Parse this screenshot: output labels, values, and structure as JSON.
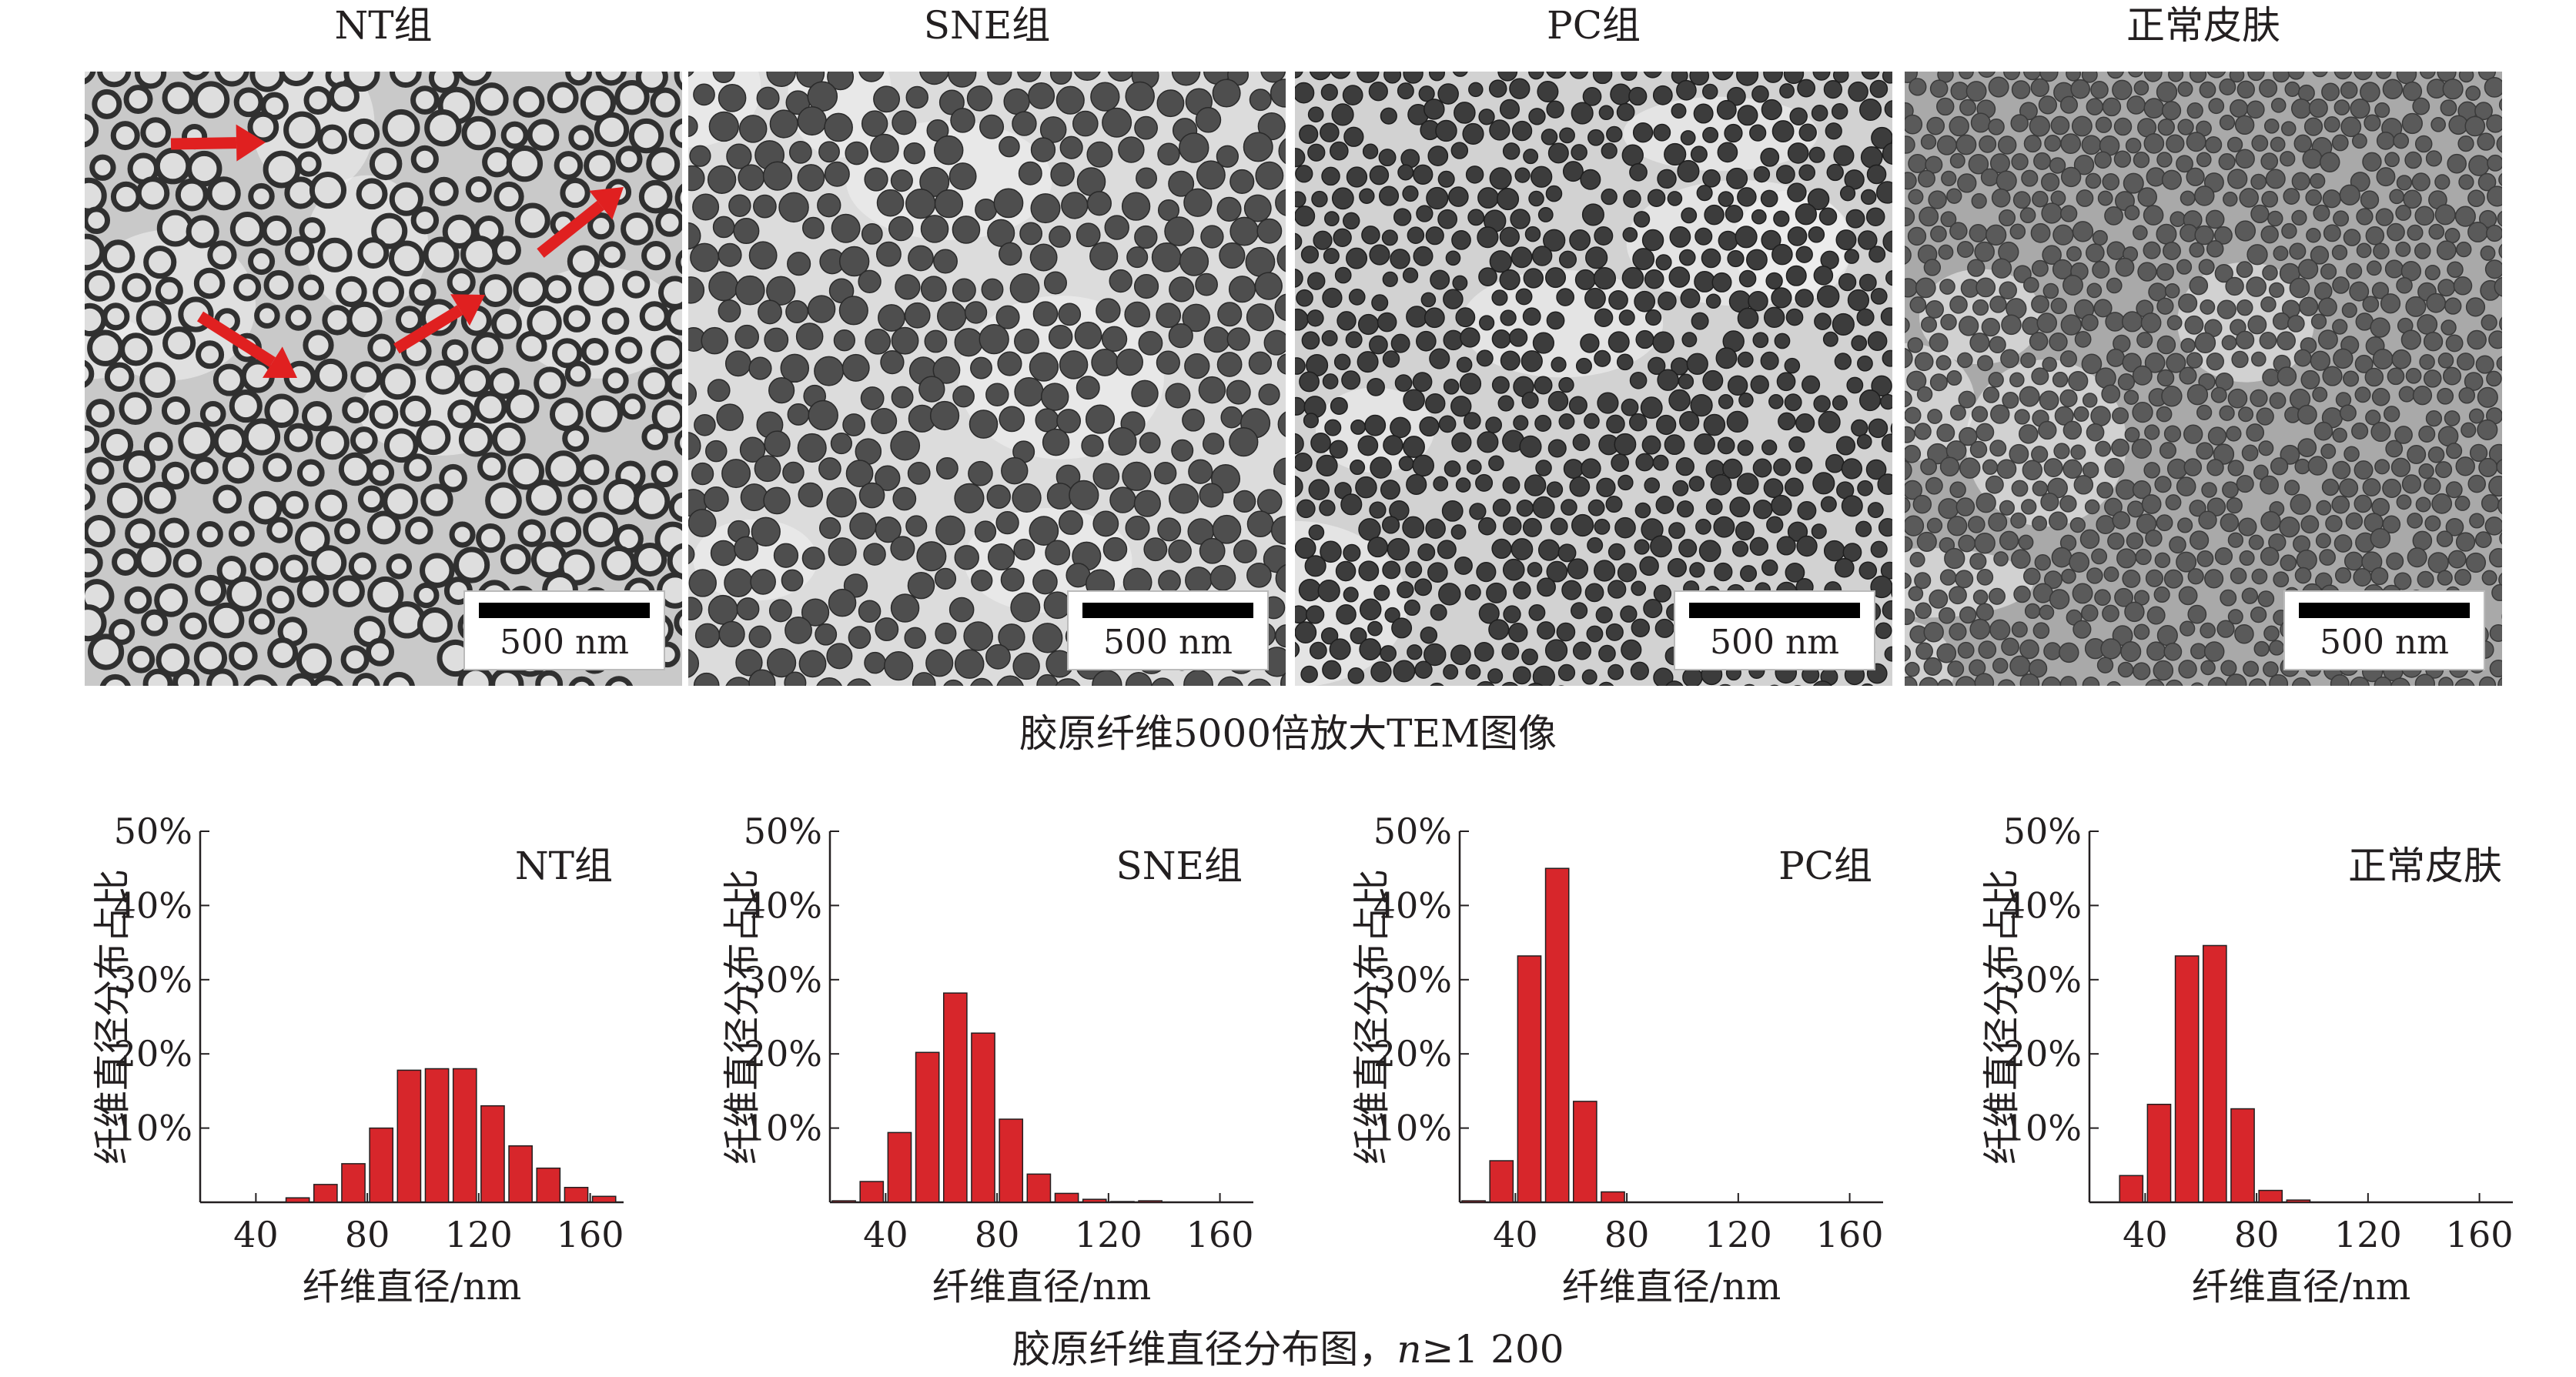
{
  "panels": [
    {
      "title": "NT组",
      "scale_label": "500 nm"
    },
    {
      "title": "SNE组",
      "scale_label": "500 nm"
    },
    {
      "title": "PC组",
      "scale_label": "500 nm"
    },
    {
      "title": "正常皮肤",
      "scale_label": "500 nm"
    }
  ],
  "tem_caption": "胶原纤维5000倍放大TEM图像",
  "chart_caption": {
    "prefix": "胶原纤维直径分布图，",
    "n_symbol": "n",
    "suffix": "≥1 200"
  },
  "colors": {
    "bar_fill": "#d7262b",
    "bar_stroke": "#231f20",
    "arrow": "#e02020"
  },
  "chart_data": [
    {
      "type": "bar",
      "title": "NT组",
      "xlabel": "纤维直径/nm",
      "ylabel": "纤维直径分布占比",
      "xlim": [
        20,
        172
      ],
      "ylim": [
        0,
        50
      ],
      "xticks": [
        40,
        80,
        120,
        160
      ],
      "yticks": [
        10,
        20,
        30,
        40,
        50
      ],
      "ytick_labels": [
        "10%",
        "20%",
        "30%",
        "40%",
        "50%"
      ],
      "bin_width": 10,
      "x": [
        55,
        65,
        75,
        85,
        95,
        105,
        115,
        125,
        135,
        145,
        155,
        165
      ],
      "values": [
        0.6,
        2.4,
        5.2,
        10.0,
        17.8,
        18.0,
        18.0,
        13.0,
        7.6,
        4.6,
        2.0,
        0.8
      ]
    },
    {
      "type": "bar",
      "title": "SNE组",
      "xlabel": "纤维直径/nm",
      "ylabel": "纤维直径分布占比",
      "xlim": [
        20,
        172
      ],
      "ylim": [
        0,
        50
      ],
      "xticks": [
        40,
        80,
        120,
        160
      ],
      "yticks": [
        10,
        20,
        30,
        40,
        50
      ],
      "ytick_labels": [
        "10%",
        "20%",
        "30%",
        "40%",
        "50%"
      ],
      "bin_width": 10,
      "x": [
        25,
        35,
        45,
        55,
        65,
        75,
        85,
        95,
        105,
        115,
        125,
        135
      ],
      "values": [
        0.2,
        2.8,
        9.4,
        20.2,
        28.2,
        22.8,
        11.2,
        3.8,
        1.2,
        0.4,
        0.1,
        0.2
      ]
    },
    {
      "type": "bar",
      "title": "PC组",
      "xlabel": "纤维直径/nm",
      "ylabel": "纤维直径分布占比",
      "xlim": [
        20,
        172
      ],
      "ylim": [
        0,
        50
      ],
      "xticks": [
        40,
        80,
        120,
        160
      ],
      "yticks": [
        10,
        20,
        30,
        40,
        50
      ],
      "ytick_labels": [
        "10%",
        "20%",
        "30%",
        "40%",
        "50%"
      ],
      "bin_width": 10,
      "x": [
        25,
        35,
        45,
        55,
        65,
        75
      ],
      "values": [
        0.2,
        5.6,
        33.2,
        45.0,
        13.6,
        1.4
      ]
    },
    {
      "type": "bar",
      "title": "正常皮肤",
      "xlabel": "纤维直径/nm",
      "ylabel": "纤维直径分布占比",
      "xlim": [
        20,
        172
      ],
      "ylim": [
        0,
        50
      ],
      "xticks": [
        40,
        80,
        120,
        160
      ],
      "yticks": [
        10,
        20,
        30,
        40,
        50
      ],
      "ytick_labels": [
        "10%",
        "20%",
        "30%",
        "40%",
        "50%"
      ],
      "bin_width": 10,
      "x": [
        35,
        45,
        55,
        65,
        75,
        85,
        95
      ],
      "values": [
        3.6,
        13.2,
        33.2,
        34.6,
        12.6,
        1.6,
        0.3
      ]
    }
  ]
}
